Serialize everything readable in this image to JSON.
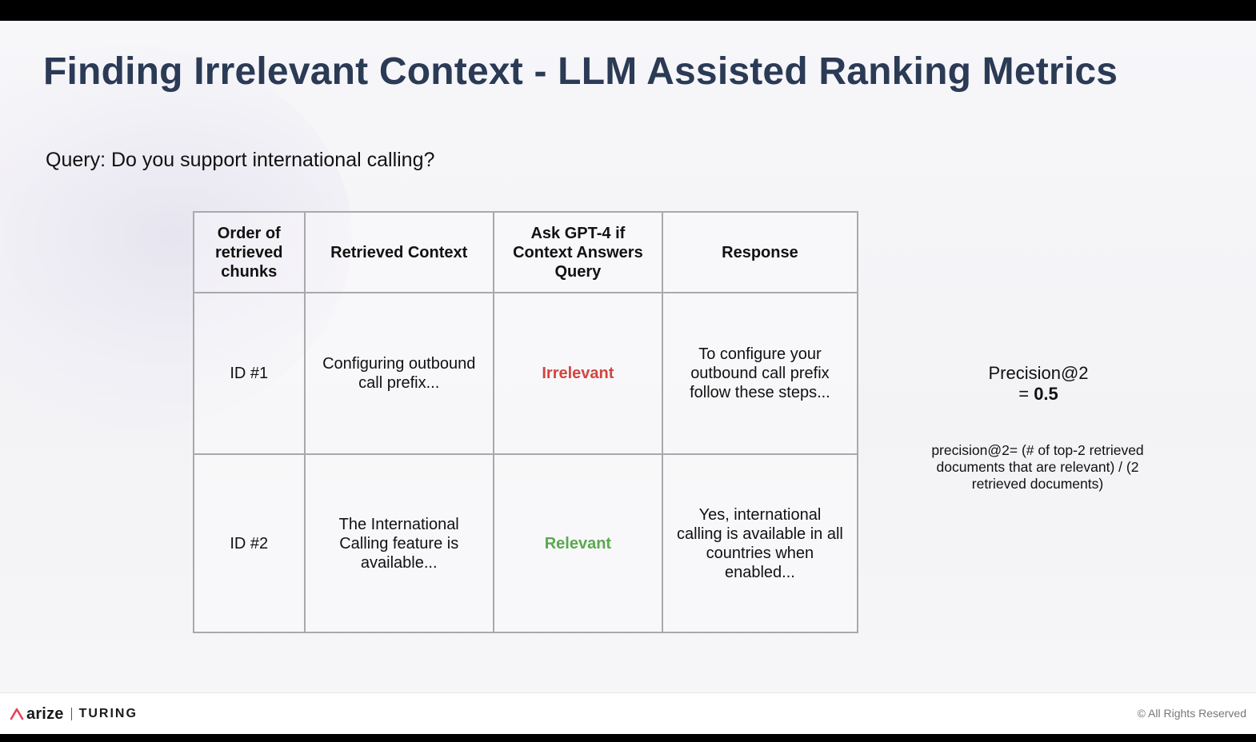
{
  "slide": {
    "title": "Finding Irrelevant Context - LLM Assisted Ranking Metrics",
    "query": "Query: Do you support international calling?"
  },
  "table": {
    "headers": [
      "Order of retrieved chunks",
      "Retrieved Context",
      "Ask GPT-4 if Context Answers Query",
      "Response"
    ],
    "rows": [
      {
        "order": "ID #1",
        "context": "Configuring outbound call prefix...",
        "verdict": "Irrelevant",
        "verdict_color": "#d2453f",
        "response": "To configure your outbound call prefix follow these steps..."
      },
      {
        "order": "ID #2",
        "context": "The International Calling feature is available...",
        "verdict": "Relevant",
        "verdict_color": "#5aa84f",
        "response": "Yes, international calling is available in all countries when enabled..."
      }
    ]
  },
  "metric": {
    "label": "Precision@2",
    "equals": "= ",
    "value": "0.5",
    "formula": "precision@2= (# of top-2 retrieved documents that are relevant) / (2 retrieved documents)"
  },
  "footer": {
    "brand_primary": "arize",
    "brand_secondary": "TURING",
    "rights": "© All Rights Reserved",
    "logo_icon": "arize-caret-icon"
  },
  "colors": {
    "title": "#2b3a55",
    "accent": "#e6455a"
  }
}
